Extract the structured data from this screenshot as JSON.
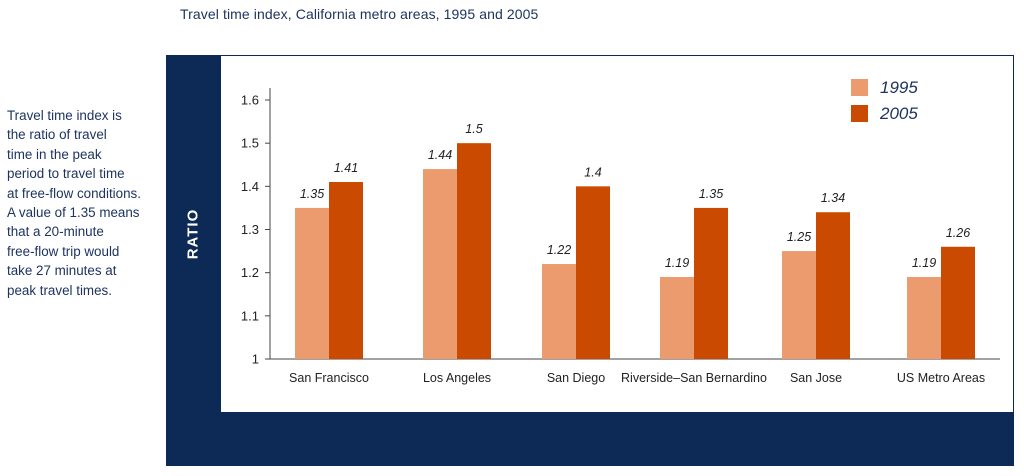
{
  "chart_data": {
    "type": "bar",
    "title": "Travel time index, California metro areas, 1995 and 2005",
    "ylabel": "RATIO",
    "xlabel": "",
    "ylim": [
      1,
      1.6
    ],
    "yticks": [
      "1",
      "1.1",
      "1.2",
      "1.3",
      "1.4",
      "1.5",
      "1.6"
    ],
    "categories": [
      "San Francisco",
      "Los Angeles",
      "San Diego",
      "Riverside–San Bernardino",
      "San Jose",
      "US Metro Areas"
    ],
    "series": [
      {
        "name": "1995",
        "color": "#eb9b6d",
        "values": [
          1.35,
          1.44,
          1.22,
          1.19,
          1.25,
          1.19
        ],
        "labels": [
          "1.35",
          "1.44",
          "1.22",
          "1.19",
          "1.25",
          "1.19"
        ]
      },
      {
        "name": "2005",
        "color": "#c94a00",
        "values": [
          1.41,
          1.5,
          1.4,
          1.35,
          1.34,
          1.26
        ],
        "labels": [
          "1.41",
          "1.5",
          "1.4",
          "1.35",
          "1.34",
          "1.26"
        ]
      }
    ],
    "legend_position": "top-right",
    "grid": false
  },
  "note": {
    "lines": [
      "Travel time index is",
      "the ratio of travel",
      "time in the peak",
      "period to travel time",
      "at free-flow conditions.",
      "A value of 1.35 means",
      "that a 20-minute",
      "free-flow trip would",
      "take 27 minutes at",
      "peak travel times."
    ]
  },
  "colors": {
    "frame": "#0d2a56",
    "text": "#1e3460"
  }
}
